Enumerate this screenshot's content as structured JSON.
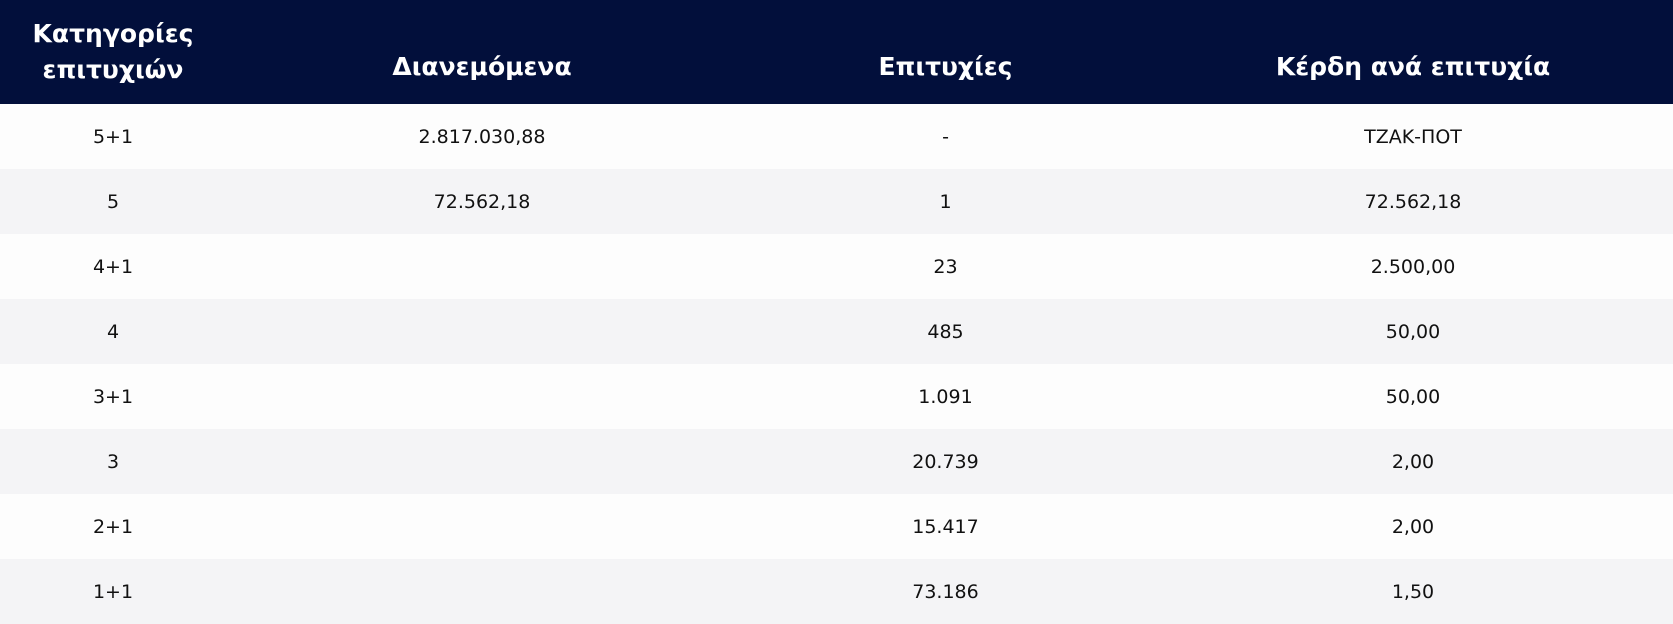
{
  "table": {
    "headers": [
      "Κατηγορίες επιτυχιών",
      "Διανεμόμενα",
      "Επιτυχίες",
      "Κέρδη ανά επιτυχία"
    ],
    "rows": [
      {
        "category": "5+1",
        "distributed": "2.817.030,88",
        "winners": "-",
        "prize": "ΤΖΑΚ-ΠΟΤ"
      },
      {
        "category": "5",
        "distributed": "72.562,18",
        "winners": "1",
        "prize": "72.562,18"
      },
      {
        "category": "4+1",
        "distributed": "",
        "winners": "23",
        "prize": "2.500,00"
      },
      {
        "category": "4",
        "distributed": "",
        "winners": "485",
        "prize": "50,00"
      },
      {
        "category": "3+1",
        "distributed": "",
        "winners": "1.091",
        "prize": "50,00"
      },
      {
        "category": "3",
        "distributed": "",
        "winners": "20.739",
        "prize": "2,00"
      },
      {
        "category": "2+1",
        "distributed": "",
        "winners": "15.417",
        "prize": "2,00"
      },
      {
        "category": "1+1",
        "distributed": "",
        "winners": "73.186",
        "prize": "1,50"
      }
    ]
  },
  "colors": {
    "header_bg": "#020f3b",
    "row_alt": "#f4f4f6"
  }
}
